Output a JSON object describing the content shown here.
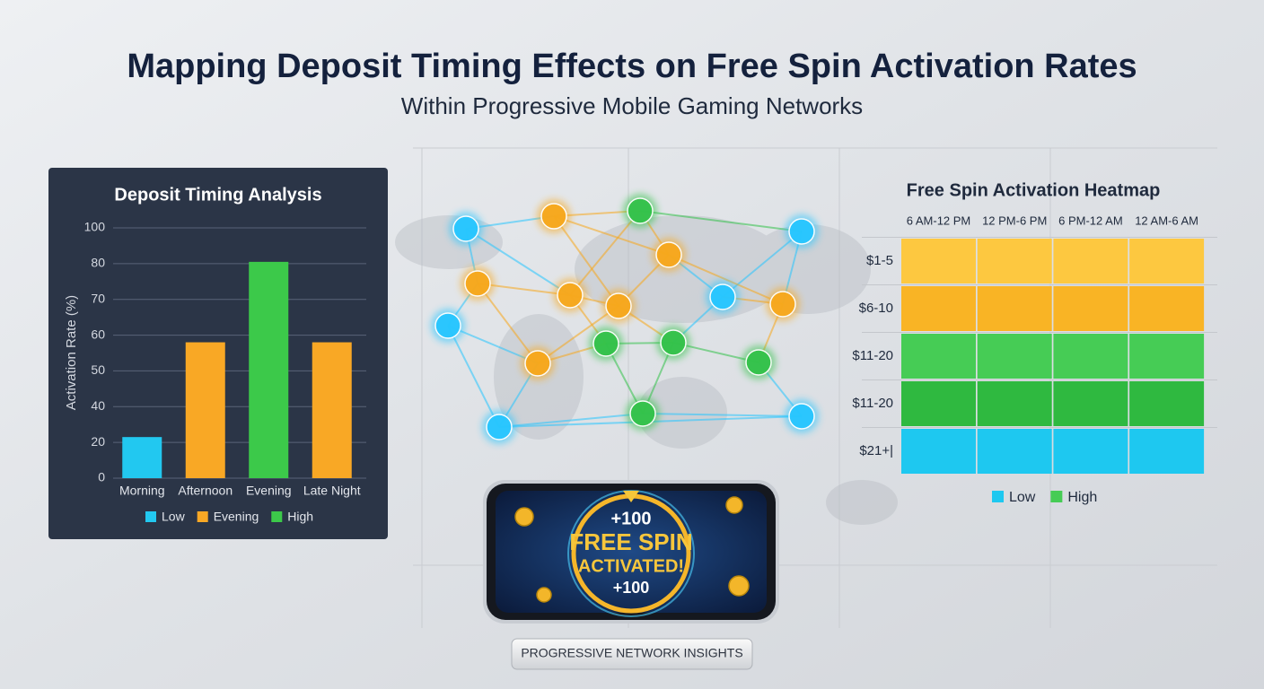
{
  "header": {
    "title": "Mapping Deposit Timing Effects on Free Spin Activation Rates",
    "subtitle": "Within Progressive Mobile Gaming Networks"
  },
  "chart_data": {
    "type": "bar",
    "title": "Deposit Timing Analysis",
    "y_label": "Activation Rate (%)",
    "categories": [
      "Morning",
      "Afternoon",
      "Evening",
      "Late Night"
    ],
    "values": [
      23,
      58,
      81,
      58
    ],
    "colors": [
      "#22c8f0",
      "#f9a825",
      "#3cc94a",
      "#f9a825"
    ],
    "ylim": [
      0,
      100
    ],
    "yticks": [
      0,
      20,
      40,
      50,
      60,
      70,
      80,
      100
    ],
    "grid": true,
    "legend": [
      {
        "name": "Low",
        "color": "#22c8f0"
      },
      {
        "name": "Evening",
        "color": "#f9a825"
      },
      {
        "name": "High",
        "color": "#3cc94a"
      }
    ]
  },
  "heatmap": {
    "title": "Free Spin Activation Heatmap",
    "columns": [
      "6 AM-12 PM",
      "12 PM-6 PM",
      "6 PM-12 AM",
      "12 AM-6 AM"
    ],
    "rows": [
      {
        "label": "$1-5",
        "color": "#fdc840"
      },
      {
        "label": "$6-10",
        "color": "#f9b425"
      },
      {
        "label": "$11-20",
        "color": "#46cc55"
      },
      {
        "label": "$11-20",
        "color": "#2fb940"
      },
      {
        "label": "$21+|",
        "color": "#1ec8f0"
      }
    ],
    "legend": [
      {
        "name": "Low",
        "color": "#1ec8f0"
      },
      {
        "name": "High",
        "color": "#46cc55"
      }
    ]
  },
  "phone": {
    "top": "+100",
    "line1": "FREE SPIN",
    "line2": "ACTIVATED!",
    "bottom": "+100"
  },
  "footer": {
    "badge": "PROGRESSIVE NETWORK INSIGHTS"
  }
}
